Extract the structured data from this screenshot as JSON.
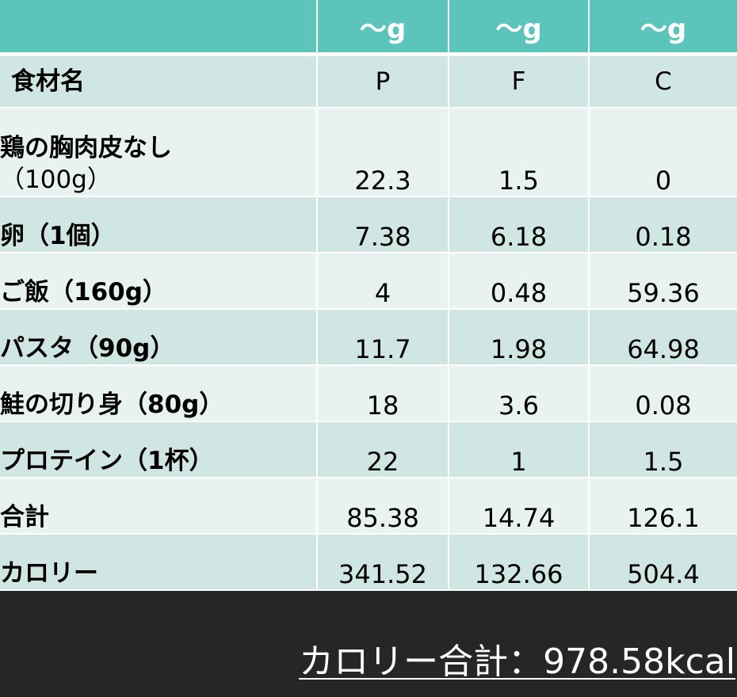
{
  "header": [
    "",
    "～g",
    "～g",
    "～g"
  ],
  "subheader": [
    "食材名",
    "P",
    "F",
    "C"
  ],
  "rows": [
    {
      "name": "鶏の胸肉皮なし",
      "name2": "（100g）",
      "p": "22.3",
      "f": "1.5",
      "c": "0"
    },
    {
      "name": "卵（1個）",
      "p": "7.38",
      "f": "6.18",
      "c": "0.18"
    },
    {
      "name": "ご飯（160g）",
      "p": "4",
      "f": "0.48",
      "c": "59.36"
    },
    {
      "name": "パスタ（90g）",
      "p": "11.7",
      "f": "1.98",
      "c": "64.98"
    },
    {
      "name": "鮭の切り身（80g）",
      "p": "18",
      "f": "3.6",
      "c": "0.08"
    },
    {
      "name": "プロテイン（1杯）",
      "p": "22",
      "f": "1",
      "c": "1.5"
    },
    {
      "name": "合計",
      "p": "85.38",
      "f": "14.74",
      "c": "126.1"
    },
    {
      "name": "カロリー",
      "p": "341.52",
      "f": "132.66",
      "c": "504.4"
    }
  ],
  "total_calories": "カロリー合計：978.58kcal",
  "colors": {
    "header": "#5bc5bb",
    "row_dark": "#cfe6e3",
    "row_light": "#e7f2f1",
    "background": "#262626"
  }
}
